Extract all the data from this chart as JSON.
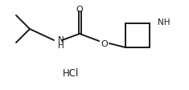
{
  "bg_color": "#ffffff",
  "line_color": "#1a1a1a",
  "line_width": 1.4,
  "fig_width": 2.35,
  "fig_height": 1.13,
  "dpi": 100,
  "hcl_text": "HCl",
  "label_O_carbonyl": "O",
  "label_O_ester": "O",
  "label_NH_carbamate": "NH",
  "label_NH_azetidine": "NH",
  "label_H_under_N": "H"
}
